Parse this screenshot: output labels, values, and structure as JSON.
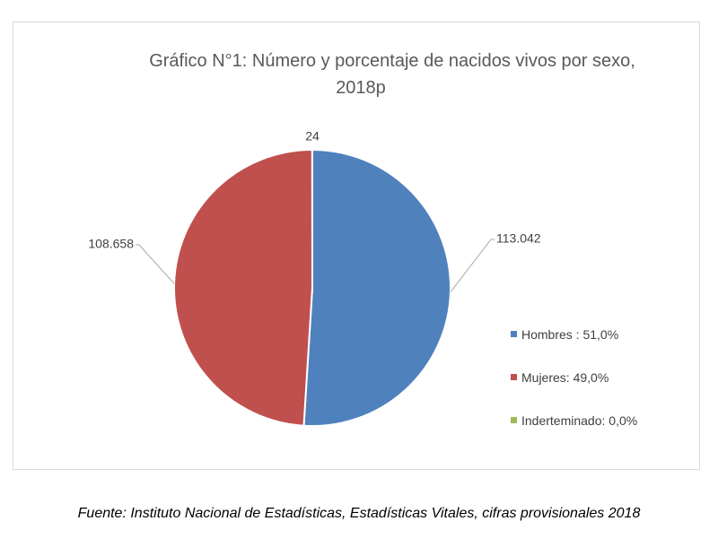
{
  "chart_data": {
    "type": "pie",
    "title": "Gráfico N°1: Número y porcentaje de nacidos vivos por sexo,",
    "title_line2": "2018p",
    "slices": [
      {
        "name": "Hombres",
        "value": 113042,
        "label": "113.042",
        "legend": "Hombres : 51,0%",
        "color": "#4f81bd"
      },
      {
        "name": "Mujeres",
        "value": 108658,
        "label": "108.658",
        "legend": "Mujeres: 49,0%",
        "color": "#c0504d"
      },
      {
        "name": "Inderteminado",
        "value": 24,
        "label": "24",
        "legend": "Inderteminado: 0,0%",
        "color": "#9bbb59"
      }
    ],
    "legend_position": "right"
  },
  "source": "Fuente: Instituto Nacional de Estadísticas, Estadísticas Vitales, cifras provisionales 2018"
}
